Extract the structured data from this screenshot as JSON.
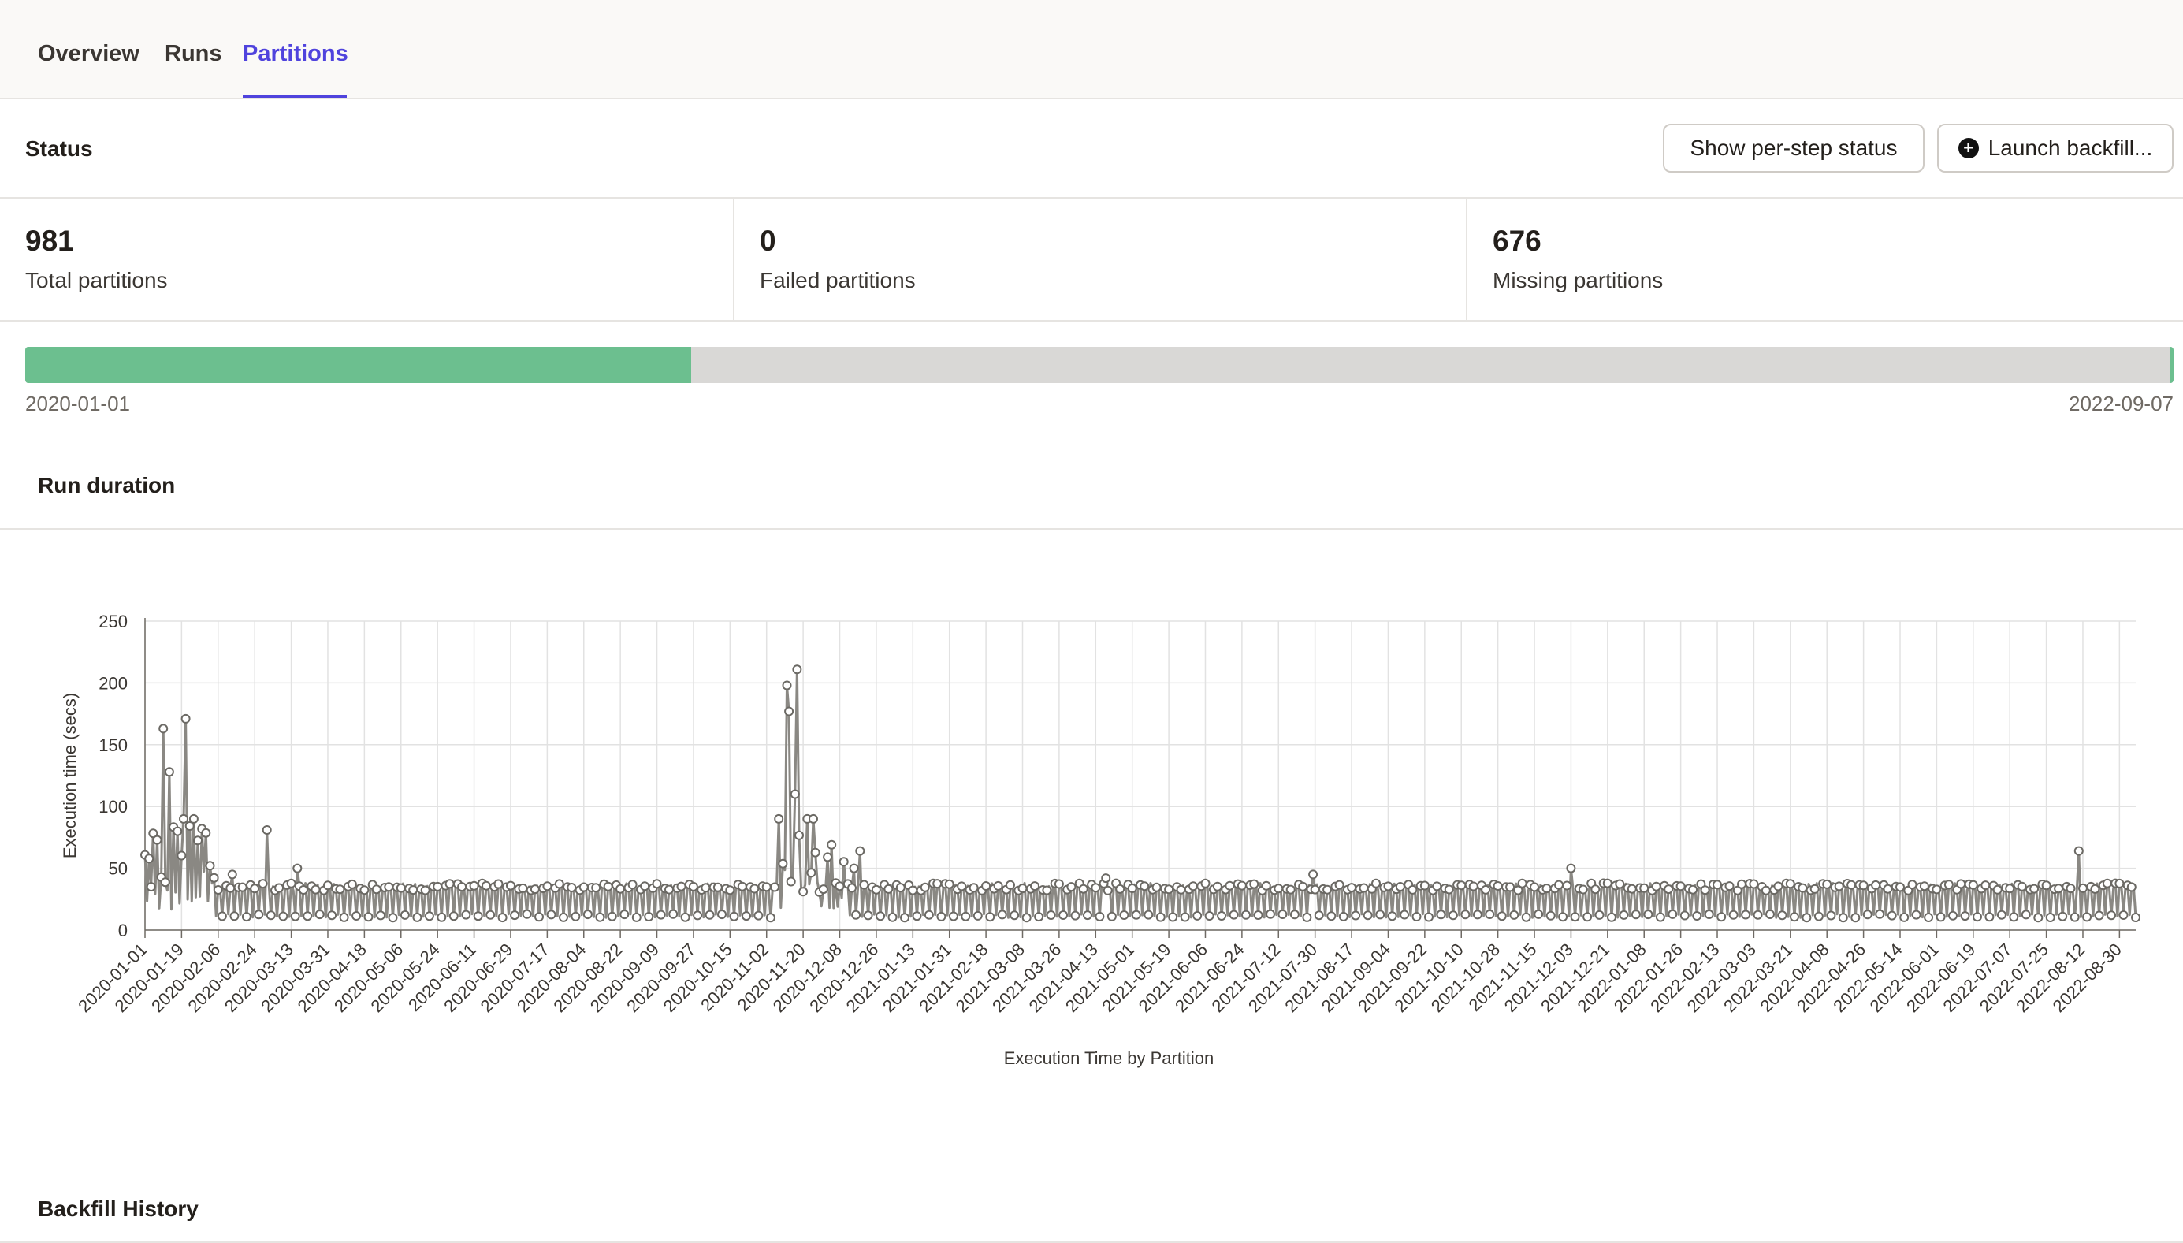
{
  "tabs": [
    {
      "label": "Overview",
      "active": false
    },
    {
      "label": "Runs",
      "active": false
    },
    {
      "label": "Partitions",
      "active": true
    }
  ],
  "status": {
    "title": "Status",
    "show_per_step_label": "Show per-step status",
    "launch_backfill_label": "Launch backfill..."
  },
  "stats": {
    "total_value": "981",
    "total_label": "Total partitions",
    "failed_value": "0",
    "failed_label": "Failed partitions",
    "missing_value": "676",
    "missing_label": "Missing partitions"
  },
  "progress": {
    "start_date": "2020-01-01",
    "end_date": "2022-09-07",
    "fill_fraction": 0.31,
    "colors": {
      "complete": "#6cbf8f",
      "missing": "#d9d8d6"
    }
  },
  "run_duration": {
    "title": "Run duration"
  },
  "backfill_history": {
    "title": "Backfill History"
  },
  "chart_data": {
    "type": "line",
    "title": "",
    "xlabel": "Execution Time by Partition",
    "ylabel": "Execution time (secs)",
    "ylim": [
      0,
      250
    ],
    "yticks": [
      0,
      50,
      100,
      150,
      200,
      250
    ],
    "x_range": [
      "2020-01-01",
      "2022-09-07"
    ],
    "x_tick_labels": [
      "2020-01-01",
      "2020-01-19",
      "2020-02-06",
      "2020-02-24",
      "2020-03-13",
      "2020-03-31",
      "2020-04-18",
      "2020-05-06",
      "2020-05-24",
      "2020-06-11",
      "2020-06-29",
      "2020-07-17",
      "2020-08-04",
      "2020-08-22",
      "2020-09-09",
      "2020-09-27",
      "2020-10-15",
      "2020-11-02",
      "2020-11-20",
      "2020-12-08",
      "2020-12-26",
      "2021-01-13",
      "2021-01-31",
      "2021-02-18",
      "2021-03-08",
      "2021-03-26",
      "2021-04-13",
      "2021-05-01",
      "2021-05-19",
      "2021-06-06",
      "2021-06-24",
      "2021-07-12",
      "2021-07-30",
      "2021-08-17",
      "2021-09-04",
      "2021-09-22",
      "2021-10-10",
      "2021-10-28",
      "2021-11-15",
      "2021-12-03",
      "2021-12-21",
      "2022-01-08",
      "2022-01-26",
      "2022-02-13",
      "2022-03-03",
      "2022-03-21",
      "2022-04-08",
      "2022-04-26",
      "2022-05-14",
      "2022-06-01",
      "2022-06-19",
      "2022-07-07",
      "2022-07-25",
      "2022-08-12",
      "2022-08-30"
    ],
    "grid": true,
    "color": "#8a8883",
    "baseline_high": 36,
    "baseline_low": 10,
    "peaks": [
      {
        "x": "2020-01-04",
        "y": 35
      },
      {
        "x": "2020-01-10",
        "y": 163
      },
      {
        "x": "2020-01-13",
        "y": 128
      },
      {
        "x": "2020-01-17",
        "y": 80
      },
      {
        "x": "2020-01-20",
        "y": 90
      },
      {
        "x": "2020-01-21",
        "y": 171
      },
      {
        "x": "2020-01-25",
        "y": 90
      },
      {
        "x": "2020-01-29",
        "y": 82
      },
      {
        "x": "2020-02-13",
        "y": 45
      },
      {
        "x": "2020-03-01",
        "y": 81
      },
      {
        "x": "2020-03-16",
        "y": 50
      },
      {
        "x": "2020-11-08",
        "y": 90
      },
      {
        "x": "2020-11-12",
        "y": 198
      },
      {
        "x": "2020-11-13",
        "y": 177
      },
      {
        "x": "2020-11-16",
        "y": 110
      },
      {
        "x": "2020-11-17",
        "y": 211
      },
      {
        "x": "2020-11-22",
        "y": 90
      },
      {
        "x": "2020-11-25",
        "y": 90
      },
      {
        "x": "2020-12-04",
        "y": 69
      },
      {
        "x": "2020-12-15",
        "y": 50
      },
      {
        "x": "2020-12-18",
        "y": 64
      },
      {
        "x": "2021-04-18",
        "y": 42
      },
      {
        "x": "2021-07-29",
        "y": 45
      },
      {
        "x": "2021-12-03",
        "y": 50
      },
      {
        "x": "2022-08-10",
        "y": 64
      }
    ]
  }
}
